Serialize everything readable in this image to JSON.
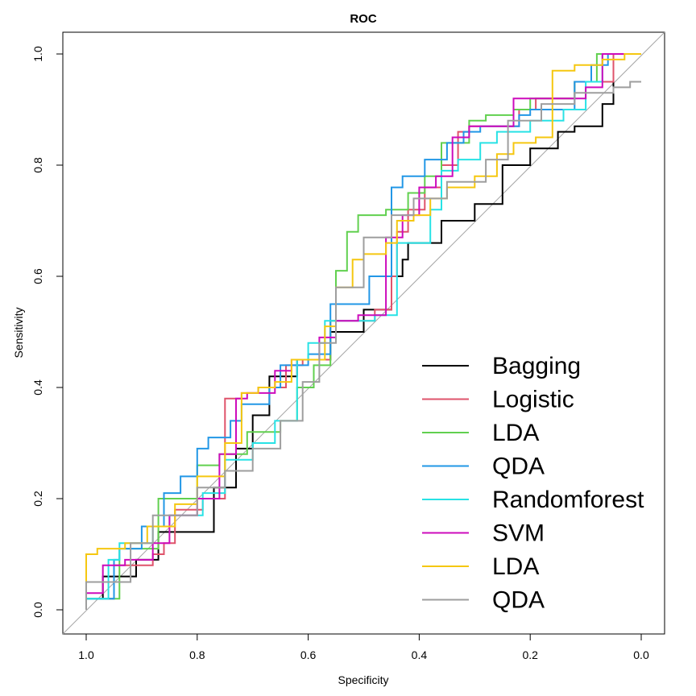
{
  "chart_data": {
    "type": "line",
    "title": "ROC",
    "xlabel": "Specificity",
    "ylabel": "Sensitivity",
    "xlim": [
      1.0,
      0.0
    ],
    "ylim": [
      0.0,
      1.0
    ],
    "x_ticks": [
      "1.0",
      "0.8",
      "0.6",
      "0.4",
      "0.2",
      "0.0"
    ],
    "y_ticks": [
      "0.0",
      "0.2",
      "0.4",
      "0.6",
      "0.8",
      "1.0"
    ],
    "x_tick_values": [
      1.0,
      0.8,
      0.6,
      0.4,
      0.2,
      0.0
    ],
    "y_tick_values": [
      0.0,
      0.2,
      0.4,
      0.6,
      0.8,
      1.0
    ],
    "grid": false,
    "legend_position": "bottom-right",
    "reference_line": {
      "from": [
        1.0,
        0.0
      ],
      "to": [
        0.0,
        1.0
      ],
      "color": "#a6a6a6"
    },
    "series": [
      {
        "name": "Bagging",
        "color": "#000000",
        "points": [
          [
            1.0,
            0.0
          ],
          [
            0.97,
            0.02
          ],
          [
            0.91,
            0.06
          ],
          [
            0.87,
            0.09
          ],
          [
            0.77,
            0.14
          ],
          [
            0.73,
            0.22
          ],
          [
            0.7,
            0.29
          ],
          [
            0.67,
            0.35
          ],
          [
            0.62,
            0.42
          ],
          [
            0.56,
            0.45
          ],
          [
            0.5,
            0.5
          ],
          [
            0.45,
            0.54
          ],
          [
            0.43,
            0.6
          ],
          [
            0.42,
            0.63
          ],
          [
            0.36,
            0.66
          ],
          [
            0.3,
            0.7
          ],
          [
            0.25,
            0.73
          ],
          [
            0.2,
            0.8
          ],
          [
            0.15,
            0.83
          ],
          [
            0.12,
            0.86
          ],
          [
            0.07,
            0.87
          ],
          [
            0.05,
            0.91
          ],
          [
            0.05,
            0.97
          ],
          [
            0.0,
            1.0
          ]
        ]
      },
      {
        "name": "Logistic",
        "color": "#df536b",
        "points": [
          [
            1.0,
            0.01
          ],
          [
            0.95,
            0.02
          ],
          [
            0.92,
            0.08
          ],
          [
            0.88,
            0.08
          ],
          [
            0.86,
            0.1
          ],
          [
            0.84,
            0.12
          ],
          [
            0.79,
            0.18
          ],
          [
            0.75,
            0.2
          ],
          [
            0.72,
            0.38
          ],
          [
            0.69,
            0.39
          ],
          [
            0.64,
            0.4
          ],
          [
            0.61,
            0.44
          ],
          [
            0.56,
            0.45
          ],
          [
            0.53,
            0.52
          ],
          [
            0.48,
            0.52
          ],
          [
            0.45,
            0.54
          ],
          [
            0.44,
            0.6
          ],
          [
            0.42,
            0.68
          ],
          [
            0.39,
            0.72
          ],
          [
            0.36,
            0.76
          ],
          [
            0.33,
            0.8
          ],
          [
            0.31,
            0.86
          ],
          [
            0.28,
            0.87
          ],
          [
            0.22,
            0.87
          ],
          [
            0.19,
            0.9
          ],
          [
            0.12,
            0.92
          ],
          [
            0.05,
            0.95
          ],
          [
            0.0,
            1.0
          ]
        ]
      },
      {
        "name": "LDA",
        "color": "#61d04f",
        "points": [
          [
            1.0,
            0.0
          ],
          [
            0.94,
            0.02
          ],
          [
            0.87,
            0.11
          ],
          [
            0.8,
            0.2
          ],
          [
            0.76,
            0.26
          ],
          [
            0.71,
            0.28
          ],
          [
            0.65,
            0.32
          ],
          [
            0.62,
            0.34
          ],
          [
            0.59,
            0.4
          ],
          [
            0.56,
            0.44
          ],
          [
            0.55,
            0.52
          ],
          [
            0.53,
            0.61
          ],
          [
            0.51,
            0.68
          ],
          [
            0.46,
            0.71
          ],
          [
            0.42,
            0.72
          ],
          [
            0.39,
            0.75
          ],
          [
            0.36,
            0.78
          ],
          [
            0.31,
            0.84
          ],
          [
            0.28,
            0.88
          ],
          [
            0.23,
            0.89
          ],
          [
            0.2,
            0.9
          ],
          [
            0.12,
            0.92
          ],
          [
            0.08,
            0.95
          ],
          [
            0.0,
            1.0
          ]
        ]
      },
      {
        "name": "QDA",
        "color": "#2297e6",
        "points": [
          [
            1.0,
            0.0
          ],
          [
            0.95,
            0.02
          ],
          [
            0.94,
            0.09
          ],
          [
            0.9,
            0.11
          ],
          [
            0.86,
            0.15
          ],
          [
            0.83,
            0.21
          ],
          [
            0.8,
            0.24
          ],
          [
            0.78,
            0.29
          ],
          [
            0.74,
            0.31
          ],
          [
            0.72,
            0.34
          ],
          [
            0.67,
            0.37
          ],
          [
            0.65,
            0.4
          ],
          [
            0.6,
            0.44
          ],
          [
            0.56,
            0.46
          ],
          [
            0.54,
            0.55
          ],
          [
            0.49,
            0.55
          ],
          [
            0.45,
            0.6
          ],
          [
            0.43,
            0.76
          ],
          [
            0.39,
            0.78
          ],
          [
            0.35,
            0.81
          ],
          [
            0.32,
            0.84
          ],
          [
            0.29,
            0.86
          ],
          [
            0.22,
            0.87
          ],
          [
            0.2,
            0.89
          ],
          [
            0.12,
            0.9
          ],
          [
            0.09,
            0.95
          ],
          [
            0.06,
            0.98
          ],
          [
            0.05,
            1.0
          ],
          [
            0.0,
            1.0
          ]
        ]
      },
      {
        "name": "Randomforest",
        "color": "#28e2e5",
        "points": [
          [
            1.0,
            0.0
          ],
          [
            0.96,
            0.02
          ],
          [
            0.94,
            0.09
          ],
          [
            0.88,
            0.12
          ],
          [
            0.85,
            0.15
          ],
          [
            0.79,
            0.17
          ],
          [
            0.75,
            0.21
          ],
          [
            0.7,
            0.27
          ],
          [
            0.66,
            0.3
          ],
          [
            0.62,
            0.34
          ],
          [
            0.6,
            0.45
          ],
          [
            0.57,
            0.48
          ],
          [
            0.56,
            0.52
          ],
          [
            0.48,
            0.52
          ],
          [
            0.44,
            0.53
          ],
          [
            0.43,
            0.66
          ],
          [
            0.38,
            0.66
          ],
          [
            0.36,
            0.72
          ],
          [
            0.33,
            0.79
          ],
          [
            0.29,
            0.81
          ],
          [
            0.26,
            0.84
          ],
          [
            0.2,
            0.86
          ],
          [
            0.14,
            0.88
          ],
          [
            0.1,
            0.9
          ],
          [
            0.07,
            0.95
          ],
          [
            0.0,
            1.0
          ]
        ]
      },
      {
        "name": "SVM",
        "color": "#cd0bbc",
        "points": [
          [
            1.0,
            0.01
          ],
          [
            0.97,
            0.03
          ],
          [
            0.93,
            0.08
          ],
          [
            0.88,
            0.09
          ],
          [
            0.85,
            0.12
          ],
          [
            0.8,
            0.17
          ],
          [
            0.76,
            0.2
          ],
          [
            0.73,
            0.28
          ],
          [
            0.71,
            0.38
          ],
          [
            0.66,
            0.39
          ],
          [
            0.63,
            0.43
          ],
          [
            0.58,
            0.45
          ],
          [
            0.55,
            0.49
          ],
          [
            0.51,
            0.52
          ],
          [
            0.46,
            0.53
          ],
          [
            0.43,
            0.67
          ],
          [
            0.4,
            0.71
          ],
          [
            0.37,
            0.76
          ],
          [
            0.34,
            0.78
          ],
          [
            0.31,
            0.85
          ],
          [
            0.29,
            0.87
          ],
          [
            0.23,
            0.87
          ],
          [
            0.19,
            0.92
          ],
          [
            0.14,
            0.92
          ],
          [
            0.1,
            0.92
          ],
          [
            0.07,
            0.94
          ],
          [
            0.0,
            1.0
          ]
        ]
      },
      {
        "name": "LDA",
        "color": "#f5c710",
        "points": [
          [
            1.0,
            0.03
          ],
          [
            0.98,
            0.1
          ],
          [
            0.93,
            0.11
          ],
          [
            0.89,
            0.12
          ],
          [
            0.84,
            0.15
          ],
          [
            0.8,
            0.19
          ],
          [
            0.75,
            0.24
          ],
          [
            0.72,
            0.3
          ],
          [
            0.69,
            0.39
          ],
          [
            0.66,
            0.4
          ],
          [
            0.63,
            0.41
          ],
          [
            0.57,
            0.45
          ],
          [
            0.55,
            0.51
          ],
          [
            0.52,
            0.58
          ],
          [
            0.5,
            0.63
          ],
          [
            0.46,
            0.64
          ],
          [
            0.44,
            0.66
          ],
          [
            0.41,
            0.7
          ],
          [
            0.38,
            0.71
          ],
          [
            0.35,
            0.74
          ],
          [
            0.3,
            0.76
          ],
          [
            0.26,
            0.78
          ],
          [
            0.23,
            0.82
          ],
          [
            0.19,
            0.84
          ],
          [
            0.16,
            0.85
          ],
          [
            0.12,
            0.97
          ],
          [
            0.07,
            0.98
          ],
          [
            0.03,
            0.99
          ],
          [
            0.0,
            1.0
          ]
        ]
      },
      {
        "name": "QDA",
        "color": "#9e9e9e",
        "points": [
          [
            1.0,
            0.0
          ],
          [
            0.92,
            0.05
          ],
          [
            0.88,
            0.12
          ],
          [
            0.8,
            0.17
          ],
          [
            0.75,
            0.22
          ],
          [
            0.7,
            0.25
          ],
          [
            0.65,
            0.29
          ],
          [
            0.61,
            0.34
          ],
          [
            0.58,
            0.41
          ],
          [
            0.55,
            0.48
          ],
          [
            0.5,
            0.58
          ],
          [
            0.45,
            0.67
          ],
          [
            0.41,
            0.71
          ],
          [
            0.35,
            0.74
          ],
          [
            0.28,
            0.77
          ],
          [
            0.24,
            0.81
          ],
          [
            0.18,
            0.88
          ],
          [
            0.12,
            0.91
          ],
          [
            0.05,
            0.93
          ],
          [
            0.02,
            0.94
          ],
          [
            0.0,
            0.95
          ]
        ]
      }
    ]
  }
}
